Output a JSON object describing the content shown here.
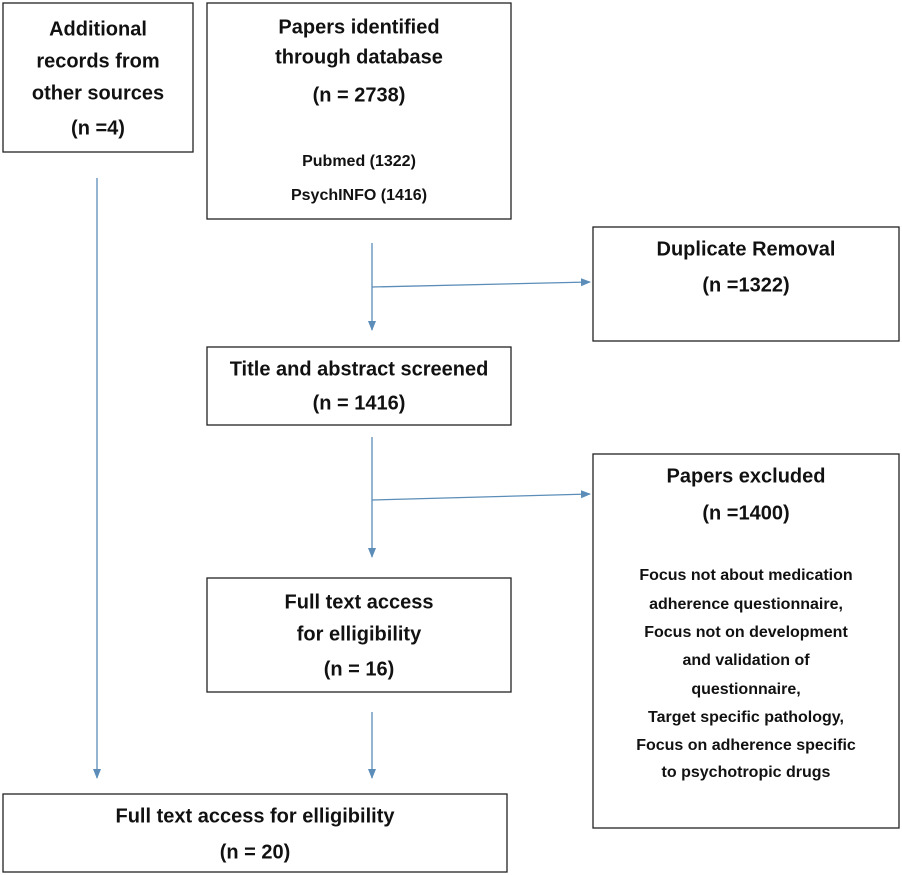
{
  "nodes": [
    {
      "lines": [
        "Additional",
        "records from",
        "other sources",
        "(n =4)"
      ]
    },
    {
      "lines": [
        "Papers identified",
        "through database",
        "(n = 2738)",
        "Pubmed (1322)",
        "PsychINFO (1416)"
      ]
    },
    {
      "lines": [
        "Duplicate Removal",
        "(n =1322)"
      ]
    },
    {
      "lines": [
        "Title and abstract screened",
        "(n = 1416)"
      ]
    },
    {
      "lines": [
        "Papers excluded",
        "(n =1400)",
        "Focus not about medication",
        "adherence questionnaire,",
        "Focus not on development",
        "and validation of",
        "questionnaire,",
        "Target specific pathology,",
        "Focus on adherence specific",
        "to psychotropic drugs"
      ]
    },
    {
      "lines": [
        "Full text access",
        "for elligibility",
        "(n = 16)"
      ]
    },
    {
      "lines": [
        "Full text access for elligibility",
        "(n = 20)"
      ]
    }
  ]
}
